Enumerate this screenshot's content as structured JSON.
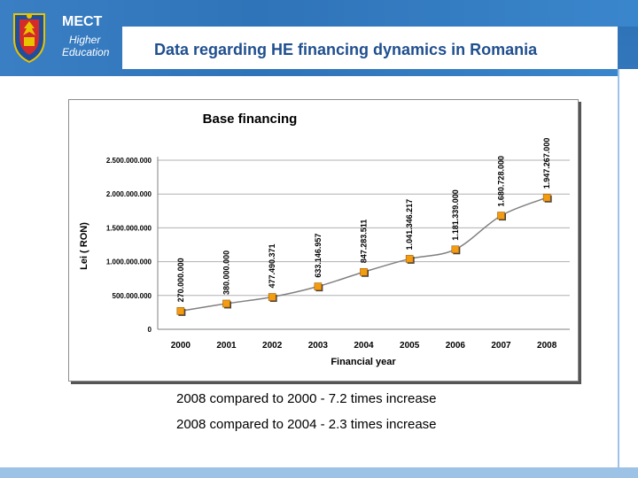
{
  "header": {
    "org": "MECT",
    "subtitle_line1": "Higher",
    "subtitle_line2": "Education",
    "page_title": "Data regarding HE financing dynamics in Romania"
  },
  "notes": [
    "2008 compared to 2000 - 7.2 times increase",
    "2008 compared to 2004 - 2.3 times increase"
  ],
  "chart_data": {
    "type": "line",
    "title": "Base financing",
    "xlabel": "Financial year",
    "ylabel": "Lei ( RON)",
    "categories": [
      "2000",
      "2001",
      "2002",
      "2003",
      "2004",
      "2005",
      "2006",
      "2007",
      "2008"
    ],
    "values": [
      270000000,
      380000000,
      477490371,
      633146957,
      847283511,
      1041346217,
      1181339000,
      1680728000,
      1947267000
    ],
    "data_labels": [
      "270.000.000",
      "380.000.000",
      "477.490.371",
      "633.146.957",
      "847.283.511",
      "1.041.346.217",
      "1.181.339.000",
      "1.680.728.000",
      "1.947.267.000"
    ],
    "yticks": [
      0,
      500000000,
      1000000000,
      1500000000,
      2000000000,
      2500000000
    ],
    "ytick_labels": [
      "0",
      "500.000.000",
      "1.000.000.000",
      "1.500.000.000",
      "2.000.000.000",
      "2.500.000.000"
    ],
    "ylim": [
      0,
      2500000000
    ],
    "grid": true,
    "line_color": "#808080",
    "marker_color": "#f39c12"
  }
}
